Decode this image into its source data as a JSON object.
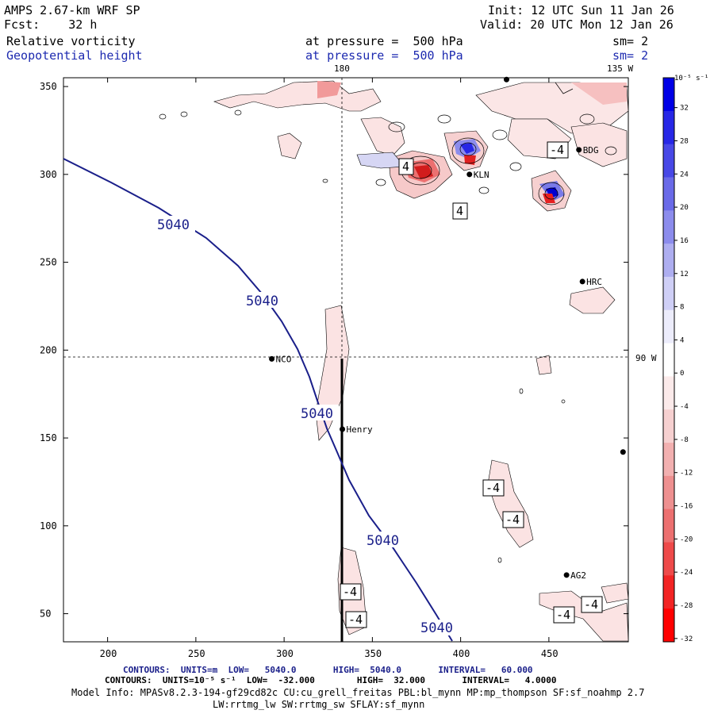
{
  "header": {
    "model": "AMPS 2.67-km WRF SP",
    "forecast": "Fcst:    32 h",
    "init": "Init: 12 UTC Sun 11 Jan 26",
    "valid": "Valid: 20 UTC Mon 12 Jan 26",
    "field1": "Relative vorticity",
    "field2": "Geopotential height",
    "pressure1": "at pressure =  500 hPa",
    "pressure2": "at pressure =  500 hPa",
    "sm1": "sm= 2",
    "sm2": "sm= 2"
  },
  "map": {
    "lon_top_180": "180",
    "lon_top_135w": "135 W",
    "lat_right_90w": "90 W",
    "stations": [
      {
        "name": "NCO",
        "x": 293,
        "y": 195
      },
      {
        "name": "Henry",
        "x": 333,
        "y": 155
      },
      {
        "name": "KLN",
        "x": 405,
        "y": 300
      },
      {
        "name": "BDG",
        "x": 467,
        "y": 314
      },
      {
        "name": "HRC",
        "x": 469,
        "y": 239
      },
      {
        "name": "AG2",
        "x": 460,
        "y": 72
      },
      {
        "name": "",
        "x": 492,
        "y": 142
      },
      {
        "name": "",
        "x": 426,
        "y": 354
      }
    ],
    "height_contour_value": "5040",
    "height_labels": [
      "5040",
      "5040",
      "5040",
      "5040",
      "5040"
    ],
    "vorticity_labels": [
      "4",
      "4",
      "-4",
      "-4",
      "-4",
      "-4",
      "-4",
      "-4",
      "-4"
    ]
  },
  "axes": {
    "x_ticks": [
      "200",
      "250",
      "300",
      "350",
      "400",
      "450"
    ],
    "y_ticks": [
      "350",
      "300",
      "250",
      "200",
      "150",
      "100",
      "50"
    ]
  },
  "colorbar": {
    "unit_label": "10⁻⁵ s⁻¹",
    "ticks": [
      "32",
      "28",
      "24",
      "20",
      "16",
      "12",
      "8",
      "4",
      "0",
      "-4",
      "-8",
      "-12",
      "-16",
      "-20",
      "-24",
      "-28",
      "-32"
    ],
    "colors": [
      "#0000e6",
      "#2727e6",
      "#4848e6",
      "#6a6ae8",
      "#8c8cec",
      "#aeaef0",
      "#cfcff6",
      "#ececfb",
      "#ffffff",
      "#fbeaea",
      "#f6d0d0",
      "#f2b0b0",
      "#ee9090",
      "#ec7070",
      "#ee4a4a",
      "#f22424",
      "#ff0000"
    ]
  },
  "footer": {
    "line1": "CONTOURS:  UNITS=m  LOW=   5040.0       HIGH=  5040.0       INTERVAL=   60.000",
    "line2": "CONTOURS:  UNITS=10⁻⁵ s⁻¹  LOW=  -32.000        HIGH=  32.000       INTERVAL=   4.0000",
    "line3": "Model Info: MPASv8.2.3-194-gf29cd82c CU:cu_grell_freitas PBL:bl_mynn MP:mp_thompson SF:sf_noahmp 2.7",
    "line4": "LW:rrtmg_lw SW:rrtmg_sw SFLAY:sf_mynn"
  }
}
